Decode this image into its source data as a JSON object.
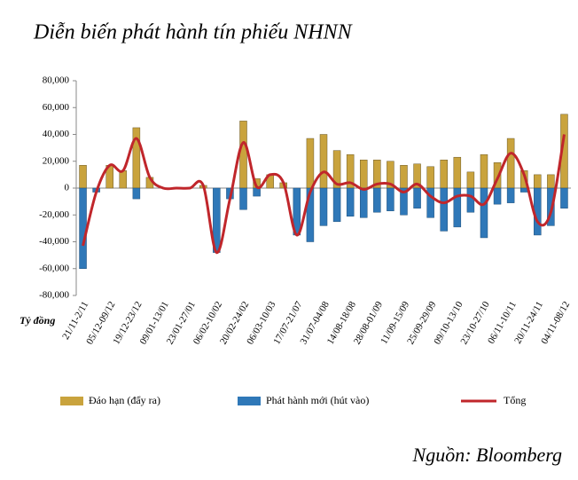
{
  "chart_data": {
    "type": "bar",
    "title": "Diễn biến phát hành tín phiếu NHNN",
    "ylabel": "Tỷ đồng",
    "source": "Nguồn: Bloomberg",
    "categories": [
      "21/11-2/11",
      null,
      "05/12-09/12",
      null,
      "19/12-23/12",
      null,
      "09/01-13/01",
      null,
      "23/01-27/01",
      null,
      "06/02-10/02",
      null,
      "20/02-24/02",
      null,
      "06/03-10/03",
      null,
      "17/07-21/07",
      null,
      "31/07-04/08",
      null,
      "14/08-18/08",
      null,
      "28/08-01/09",
      null,
      "11/09-15/09",
      null,
      "25/09-29/09",
      null,
      "09/10-13/10",
      null,
      "23/10-27/10",
      null,
      "06/11-10/11",
      null,
      "20/11-24/11",
      null,
      "04/11-08/12"
    ],
    "series": [
      {
        "name": "Đáo hạn (đẩy ra)",
        "type": "bar",
        "color": "#c9a33d",
        "values": [
          17000,
          0,
          17000,
          13000,
          45000,
          8000,
          0,
          0,
          0,
          2000,
          0,
          0,
          50000,
          7000,
          10000,
          4000,
          0,
          37000,
          40000,
          28000,
          25000,
          21000,
          21000,
          20000,
          17000,
          18000,
          16000,
          21000,
          23000,
          12000,
          25000,
          19000,
          37000,
          13000,
          10000,
          10000,
          55000
        ]
      },
      {
        "name": "Phát hành mới (hút vào)",
        "type": "bar",
        "color": "#2f78b8",
        "values": [
          -60000,
          -3000,
          0,
          0,
          -8000,
          0,
          0,
          0,
          0,
          0,
          -48000,
          -8000,
          -16000,
          -6000,
          0,
          0,
          -35000,
          -40000,
          -28000,
          -25000,
          -21000,
          -22000,
          -18000,
          -17000,
          -20000,
          -15000,
          -22000,
          -32000,
          -29000,
          -18000,
          -37000,
          -12000,
          -11000,
          -3000,
          -35000,
          -28000,
          -15000
        ]
      },
      {
        "name": "Tổng",
        "type": "line",
        "color": "#c0262b",
        "values": [
          -43000,
          -3000,
          17000,
          13000,
          37000,
          8000,
          0,
          0,
          0,
          2000,
          -48000,
          -8000,
          34000,
          1000,
          10000,
          4000,
          -35000,
          -3000,
          12000,
          3000,
          4000,
          -1000,
          3000,
          3000,
          -3000,
          3000,
          -6000,
          -11000,
          -6000,
          -6000,
          -12000,
          7000,
          26000,
          10000,
          -25000,
          -18000,
          40000
        ]
      }
    ],
    "ylim": [
      -80000,
      80000
    ],
    "yticks": [
      {
        "value": -80000,
        "label": "-80,000"
      },
      {
        "value": -60000,
        "label": "-60,000"
      },
      {
        "value": -40000,
        "label": "-40,000"
      },
      {
        "value": -20000,
        "label": "-20,000"
      },
      0,
      {
        "value": 20000,
        "label": "20,000"
      },
      {
        "value": 40000,
        "label": "40,000"
      },
      {
        "value": 60000,
        "label": "60,000"
      },
      {
        "value": 80000,
        "label": "80,000"
      }
    ]
  }
}
